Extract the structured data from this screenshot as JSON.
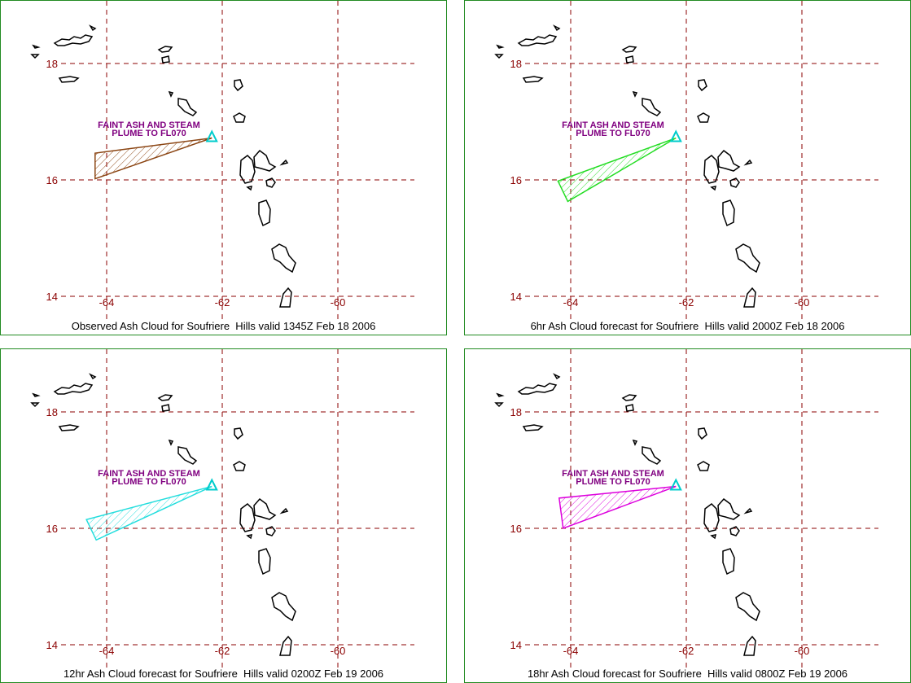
{
  "grid": {
    "lon_ticks": [
      -64,
      -62,
      -60
    ],
    "lon_labels": [
      "-64",
      "-62",
      "-60"
    ],
    "lat_ticks": [
      18,
      16,
      14
    ],
    "lat_labels": [
      "18",
      "16",
      "14"
    ],
    "grid_color": "#8b0000",
    "label_color": "#8b0000"
  },
  "annotation": {
    "line1": "FAINT ASH AND STEAM",
    "line2": "PLUME TO FL070",
    "color": "#800080"
  },
  "volcano": {
    "name": "Soufriere Hills",
    "lon": -62.18,
    "lat": 16.72,
    "marker_color": "#00cccc"
  },
  "panels": [
    {
      "caption": "Observed Ash Cloud for Soufriere  Hills valid 1345Z Feb 18 2006",
      "polygon_color": "#8b4513",
      "polygon": [
        [
          -62.18,
          16.72
        ],
        [
          -64.2,
          16.46
        ],
        [
          -64.2,
          16.02
        ]
      ]
    },
    {
      "caption": "6hr Ash Cloud forecast for Soufriere  Hills valid 2000Z Feb 18 2006",
      "polygon_color": "#22dd22",
      "polygon": [
        [
          -62.18,
          16.72
        ],
        [
          -64.22,
          15.98
        ],
        [
          -64.05,
          15.63
        ]
      ]
    },
    {
      "caption": "12hr Ash Cloud forecast for Soufriere  Hills valid 0200Z Feb 19 2006",
      "polygon_color": "#22dddd",
      "polygon": [
        [
          -62.18,
          16.72
        ],
        [
          -64.35,
          16.15
        ],
        [
          -64.18,
          15.8
        ]
      ]
    },
    {
      "caption": "18hr Ash Cloud forecast for Soufriere  Hills valid 0800Z Feb 19 2006",
      "polygon_color": "#dd00dd",
      "polygon": [
        [
          -62.18,
          16.72
        ],
        [
          -64.2,
          16.52
        ],
        [
          -64.13,
          16.0
        ]
      ]
    }
  ]
}
